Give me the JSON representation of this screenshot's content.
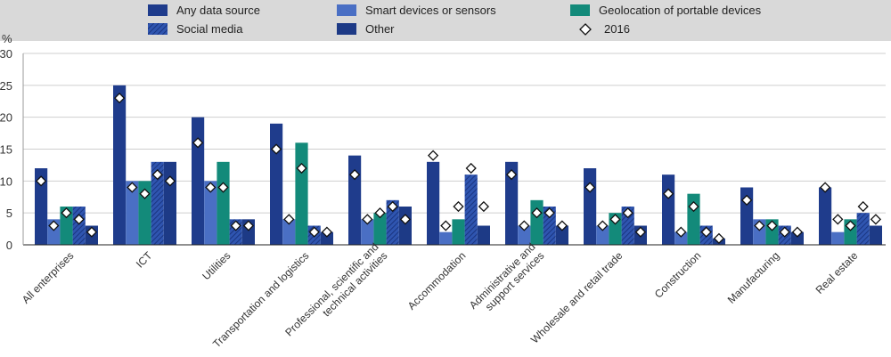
{
  "chart_data": {
    "type": "bar",
    "ylabel": "%",
    "ylim": [
      0,
      30
    ],
    "yticks": [
      0,
      5,
      10,
      15,
      20,
      25,
      30
    ],
    "grid": true,
    "legend_position": "top",
    "categories": [
      "All enterprises",
      "ICT",
      "Utilities",
      "Transportation and logistics",
      "Professional, scientific and technical activities",
      "Accommodation",
      "Administrative and support services",
      "Wholesale and retail trade",
      "Construction",
      "Manufacturing",
      "Real estate"
    ],
    "category_lines": [
      [
        "All enterprises"
      ],
      [
        "ICT"
      ],
      [
        "Utilities"
      ],
      [
        "Transportation and logistics"
      ],
      [
        "Professional, scientific and",
        "technical activities"
      ],
      [
        "Accommodation"
      ],
      [
        "Administrative and",
        "support services"
      ],
      [
        "Wholesale and retail trade"
      ],
      [
        "Construction"
      ],
      [
        "Manufacturing"
      ],
      [
        "Real estate"
      ]
    ],
    "series": [
      {
        "name": "Any data source",
        "color": "#1f3c8c",
        "pattern": "solid",
        "values": [
          12,
          25,
          20,
          19,
          14,
          13,
          13,
          12,
          11,
          9,
          9
        ]
      },
      {
        "name": "Smart devices or sensors",
        "color": "#4a6fc4",
        "pattern": "solid",
        "values": [
          4,
          10,
          10,
          4,
          4,
          2,
          3,
          3,
          2,
          4,
          2
        ]
      },
      {
        "name": "Geolocation of portable devices",
        "color": "#138a7a",
        "pattern": "solid",
        "values": [
          6,
          10,
          13,
          16,
          5,
          4,
          7,
          5,
          8,
          4,
          4
        ]
      },
      {
        "name": "Social media",
        "color": "#2f55b0",
        "pattern": "hatch",
        "values": [
          6,
          13,
          4,
          3,
          7,
          11,
          6,
          6,
          3,
          3,
          5
        ]
      },
      {
        "name": "Other",
        "color": "#1d3a86",
        "pattern": "solid",
        "values": [
          3,
          13,
          4,
          2,
          6,
          3,
          3,
          3,
          1,
          2,
          3
        ]
      }
    ],
    "markers": {
      "name": "2016",
      "shape": "diamond",
      "values": [
        [
          10,
          3,
          5,
          4,
          2
        ],
        [
          23,
          9,
          8,
          11,
          10
        ],
        [
          16,
          9,
          9,
          3,
          3
        ],
        [
          15,
          4,
          12,
          2,
          2
        ],
        [
          11,
          4,
          5,
          6,
          4
        ],
        [
          14,
          3,
          6,
          12,
          6
        ],
        [
          11,
          3,
          5,
          5,
          3
        ],
        [
          9,
          3,
          4,
          5,
          2
        ],
        [
          8,
          2,
          6,
          2,
          1
        ],
        [
          7,
          3,
          3,
          2,
          2
        ],
        [
          9,
          4,
          3,
          6,
          4
        ]
      ]
    }
  }
}
